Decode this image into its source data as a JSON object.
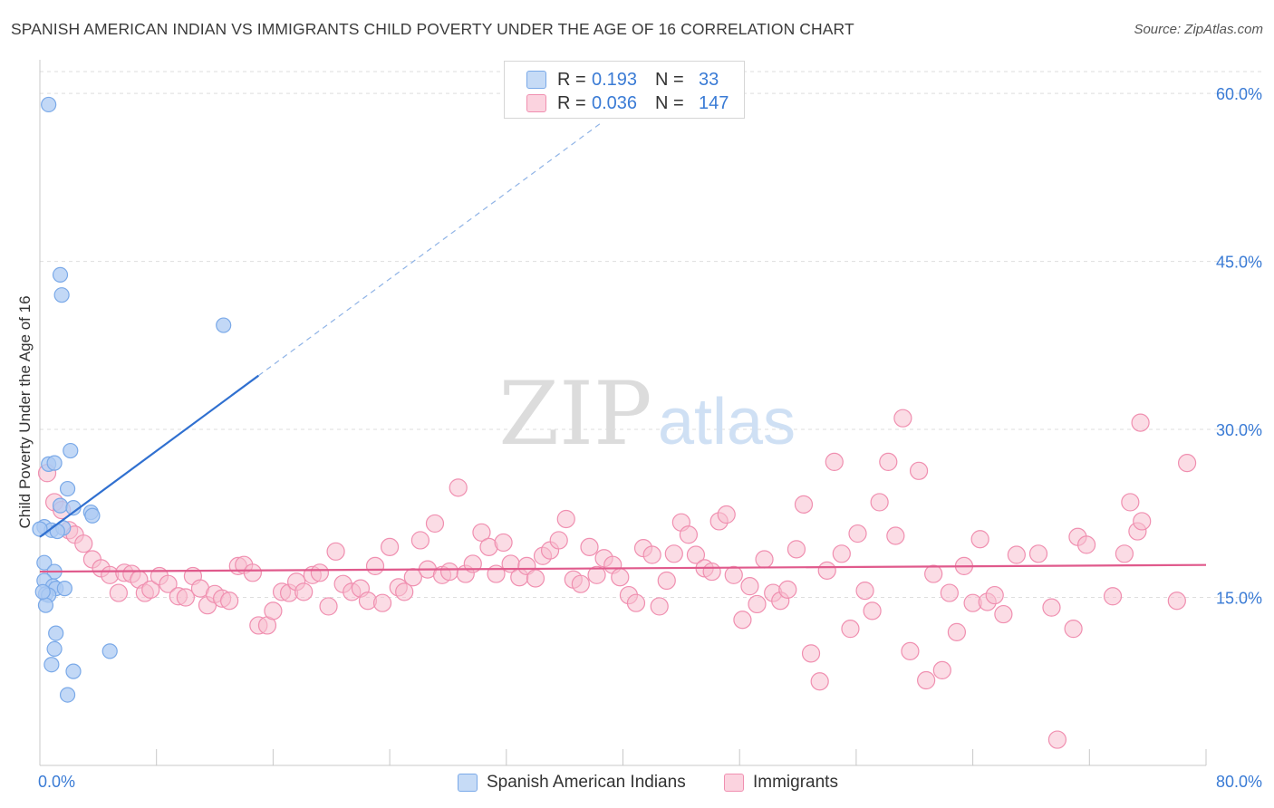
{
  "title": "SPANISH AMERICAN INDIAN VS IMMIGRANTS CHILD POVERTY UNDER THE AGE OF 16 CORRELATION CHART",
  "source": "Source: ZipAtlas.com",
  "watermark": {
    "zip": "ZIP",
    "atlas": "atlas"
  },
  "legend": {
    "rows": [
      {
        "r_label": "R =",
        "r_value": "0.193",
        "n_label": "N =",
        "n_value": "33",
        "color": "#aecbf3"
      },
      {
        "r_label": "R =",
        "r_value": "0.036",
        "n_label": "N =",
        "n_value": "147",
        "color": "#f8bfd0"
      }
    ]
  },
  "chart_data": {
    "type": "scatter",
    "title": "SPANISH AMERICAN INDIAN VS IMMIGRANTS CHILD POVERTY UNDER THE AGE OF 16 CORRELATION CHART",
    "xlabel": "",
    "ylabel": "Child Poverty Under the Age of 16",
    "xlim": [
      0,
      80
    ],
    "ylim": [
      0,
      63
    ],
    "x_tick_labels": [
      "0.0%",
      "80.0%"
    ],
    "y_ticks": [
      15,
      30,
      45,
      60
    ],
    "y_tick_labels": [
      "15.0%",
      "30.0%",
      "45.0%",
      "60.0%"
    ],
    "grid": true,
    "legend_position": "bottom",
    "series": [
      {
        "name": "Spanish American Indians",
        "color": "#7aa9e8",
        "fill": "#aecbf3",
        "trend": {
          "x0": 0,
          "y0": 20.4,
          "x1": 15,
          "y1": 34.8,
          "dash_to_x": 38.5,
          "color": "#3070d0"
        },
        "points": [
          [
            0.6,
            59.0
          ],
          [
            1.4,
            43.8
          ],
          [
            1.5,
            42.0
          ],
          [
            12.6,
            39.3
          ],
          [
            2.1,
            28.1
          ],
          [
            0.6,
            26.9
          ],
          [
            1.0,
            27.0
          ],
          [
            1.9,
            24.7
          ],
          [
            1.4,
            23.2
          ],
          [
            2.3,
            23.0
          ],
          [
            0.3,
            21.3
          ],
          [
            0.8,
            21.0
          ],
          [
            1.6,
            21.2
          ],
          [
            1.2,
            20.9
          ],
          [
            3.5,
            22.6
          ],
          [
            3.6,
            22.3
          ],
          [
            0.0,
            21.1
          ],
          [
            0.3,
            18.1
          ],
          [
            1.0,
            17.3
          ],
          [
            0.3,
            16.5
          ],
          [
            0.9,
            16.0
          ],
          [
            1.1,
            15.8
          ],
          [
            1.7,
            15.8
          ],
          [
            0.4,
            15.3
          ],
          [
            0.6,
            15.2
          ],
          [
            0.4,
            14.3
          ],
          [
            1.1,
            11.8
          ],
          [
            1.0,
            10.4
          ],
          [
            0.8,
            9.0
          ],
          [
            4.8,
            10.2
          ],
          [
            2.3,
            8.4
          ],
          [
            1.9,
            6.3
          ],
          [
            0.2,
            15.5
          ]
        ]
      },
      {
        "name": "Immigrants",
        "color": "#f08fb0",
        "fill": "#f8bfd0",
        "trend": {
          "x0": 0,
          "y0": 17.3,
          "x1": 80,
          "y1": 17.9,
          "color": "#e05a8c"
        },
        "points": [
          [
            0.5,
            26.1
          ],
          [
            1.0,
            23.5
          ],
          [
            1.5,
            22.8
          ],
          [
            2.0,
            21.0
          ],
          [
            2.4,
            20.6
          ],
          [
            3.0,
            19.8
          ],
          [
            3.6,
            18.4
          ],
          [
            4.2,
            17.6
          ],
          [
            4.8,
            17.0
          ],
          [
            5.4,
            15.4
          ],
          [
            5.8,
            17.2
          ],
          [
            6.3,
            17.1
          ],
          [
            6.8,
            16.6
          ],
          [
            7.2,
            15.4
          ],
          [
            7.6,
            15.7
          ],
          [
            8.2,
            16.9
          ],
          [
            8.8,
            16.2
          ],
          [
            9.5,
            15.1
          ],
          [
            10.0,
            15.0
          ],
          [
            10.5,
            16.9
          ],
          [
            11.0,
            15.8
          ],
          [
            11.5,
            14.3
          ],
          [
            12.0,
            15.3
          ],
          [
            12.5,
            14.9
          ],
          [
            13.0,
            14.7
          ],
          [
            13.6,
            17.8
          ],
          [
            14.0,
            17.9
          ],
          [
            14.6,
            17.2
          ],
          [
            15.0,
            12.5
          ],
          [
            15.6,
            12.5
          ],
          [
            16.0,
            13.8
          ],
          [
            16.6,
            15.5
          ],
          [
            17.1,
            15.4
          ],
          [
            17.6,
            16.4
          ],
          [
            18.1,
            15.5
          ],
          [
            18.7,
            17.0
          ],
          [
            19.2,
            17.2
          ],
          [
            19.8,
            14.2
          ],
          [
            20.3,
            19.1
          ],
          [
            20.8,
            16.2
          ],
          [
            21.4,
            15.5
          ],
          [
            22.0,
            15.8
          ],
          [
            22.5,
            14.7
          ],
          [
            23.0,
            17.8
          ],
          [
            23.5,
            14.5
          ],
          [
            24.0,
            19.5
          ],
          [
            24.6,
            15.9
          ],
          [
            25.0,
            15.5
          ],
          [
            25.6,
            16.8
          ],
          [
            26.1,
            20.1
          ],
          [
            26.6,
            17.5
          ],
          [
            27.1,
            21.6
          ],
          [
            27.6,
            17.0
          ],
          [
            28.1,
            17.3
          ],
          [
            28.7,
            24.8
          ],
          [
            29.2,
            17.1
          ],
          [
            29.7,
            18.0
          ],
          [
            30.3,
            20.8
          ],
          [
            30.8,
            19.5
          ],
          [
            31.3,
            17.1
          ],
          [
            31.8,
            19.9
          ],
          [
            32.3,
            18.0
          ],
          [
            32.9,
            16.8
          ],
          [
            33.4,
            17.8
          ],
          [
            34.0,
            16.7
          ],
          [
            34.5,
            18.7
          ],
          [
            35.0,
            19.2
          ],
          [
            35.6,
            20.1
          ],
          [
            36.1,
            22.0
          ],
          [
            36.6,
            16.6
          ],
          [
            37.1,
            16.2
          ],
          [
            37.7,
            19.5
          ],
          [
            38.2,
            17.0
          ],
          [
            38.7,
            18.5
          ],
          [
            39.3,
            17.9
          ],
          [
            39.8,
            16.8
          ],
          [
            40.4,
            15.2
          ],
          [
            40.9,
            14.5
          ],
          [
            41.4,
            19.4
          ],
          [
            42.0,
            18.8
          ],
          [
            42.5,
            14.2
          ],
          [
            43.0,
            16.5
          ],
          [
            43.5,
            18.9
          ],
          [
            44.0,
            21.7
          ],
          [
            44.5,
            20.6
          ],
          [
            45.0,
            18.8
          ],
          [
            45.6,
            17.6
          ],
          [
            46.1,
            17.3
          ],
          [
            46.6,
            21.8
          ],
          [
            47.1,
            22.4
          ],
          [
            47.6,
            17.0
          ],
          [
            48.2,
            13.0
          ],
          [
            48.7,
            16.0
          ],
          [
            49.2,
            14.4
          ],
          [
            49.7,
            18.4
          ],
          [
            50.3,
            15.4
          ],
          [
            50.8,
            14.7
          ],
          [
            51.3,
            15.7
          ],
          [
            51.9,
            19.3
          ],
          [
            52.4,
            23.3
          ],
          [
            52.9,
            10.0
          ],
          [
            53.5,
            7.5
          ],
          [
            54.0,
            17.4
          ],
          [
            54.5,
            27.1
          ],
          [
            55.0,
            18.9
          ],
          [
            55.6,
            12.2
          ],
          [
            56.1,
            20.7
          ],
          [
            56.6,
            15.6
          ],
          [
            57.1,
            13.8
          ],
          [
            57.6,
            23.5
          ],
          [
            58.2,
            27.1
          ],
          [
            58.7,
            20.5
          ],
          [
            59.2,
            31.0
          ],
          [
            59.7,
            10.2
          ],
          [
            60.3,
            26.3
          ],
          [
            60.8,
            7.6
          ],
          [
            61.3,
            17.1
          ],
          [
            61.9,
            8.5
          ],
          [
            62.4,
            15.4
          ],
          [
            62.9,
            11.9
          ],
          [
            63.4,
            17.8
          ],
          [
            64.0,
            14.5
          ],
          [
            64.5,
            20.2
          ],
          [
            65.0,
            14.6
          ],
          [
            65.5,
            15.2
          ],
          [
            66.1,
            13.5
          ],
          [
            67.0,
            18.8
          ],
          [
            68.5,
            18.9
          ],
          [
            69.4,
            14.1
          ],
          [
            69.8,
            2.3
          ],
          [
            70.9,
            12.2
          ],
          [
            71.2,
            20.4
          ],
          [
            71.8,
            19.7
          ],
          [
            73.6,
            15.1
          ],
          [
            74.4,
            18.9
          ],
          [
            74.8,
            23.5
          ],
          [
            75.3,
            20.9
          ],
          [
            75.5,
            30.6
          ],
          [
            75.6,
            21.8
          ],
          [
            78.0,
            14.7
          ],
          [
            78.7,
            27.0
          ]
        ]
      }
    ]
  }
}
